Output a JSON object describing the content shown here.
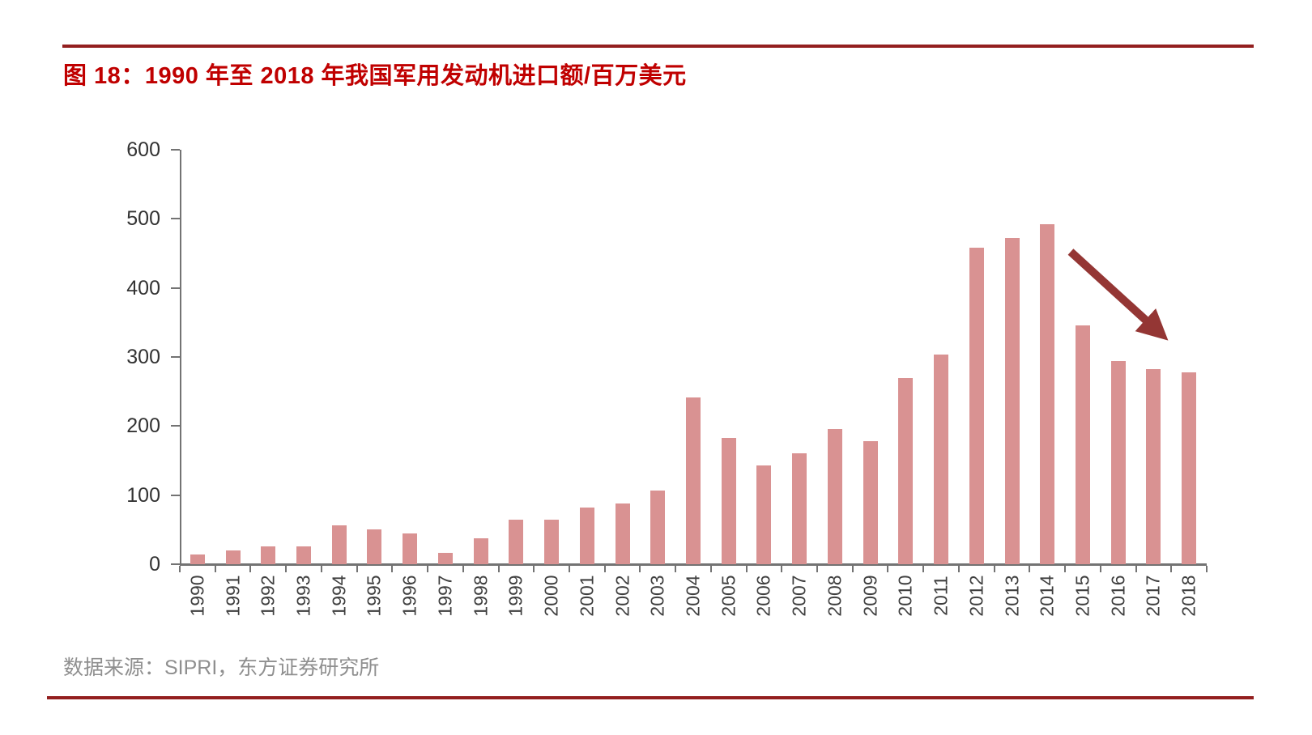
{
  "figure": {
    "title": "图 18：1990 年至 2018 年我国军用发动机进口额/百万美元",
    "source": "数据来源：SIPRI，东方证券研究所"
  },
  "colors": {
    "title_red": "#c00000",
    "rule_red": "#931f1f",
    "bar_fill": "#d99292",
    "axis_gray": "#737373",
    "y_label_color": "#333333",
    "x_label_color": "#3f3f3f",
    "source_gray": "#8f8f8f",
    "arrow_dark_red": "#943634"
  },
  "chart_data": {
    "type": "bar",
    "title": "1990 年至 2018 年我国军用发动机进口额/百万美元",
    "xlabel": "",
    "ylabel": "百万美元",
    "categories": [
      "1990",
      "1991",
      "1992",
      "1993",
      "1994",
      "1995",
      "1996",
      "1997",
      "1998",
      "1999",
      "2000",
      "2001",
      "2002",
      "2003",
      "2004",
      "2005",
      "2006",
      "2007",
      "2008",
      "2009",
      "2010",
      "2011",
      "2012",
      "2013",
      "2014",
      "2015",
      "2016",
      "2017",
      "2018"
    ],
    "values": [
      14,
      20,
      26,
      26,
      56,
      50,
      44,
      16,
      38,
      65,
      65,
      82,
      88,
      107,
      241,
      183,
      143,
      160,
      196,
      178,
      270,
      304,
      458,
      472,
      492,
      346,
      294,
      283,
      278
    ],
    "ylim": [
      0,
      600
    ],
    "yticks": [
      0,
      100,
      200,
      300,
      400,
      500,
      600
    ],
    "grid": false,
    "legend": false,
    "annotation": {
      "type": "arrow",
      "meaning": "decline-trend-after-2014",
      "span_years": [
        "2015",
        "2018"
      ]
    }
  }
}
